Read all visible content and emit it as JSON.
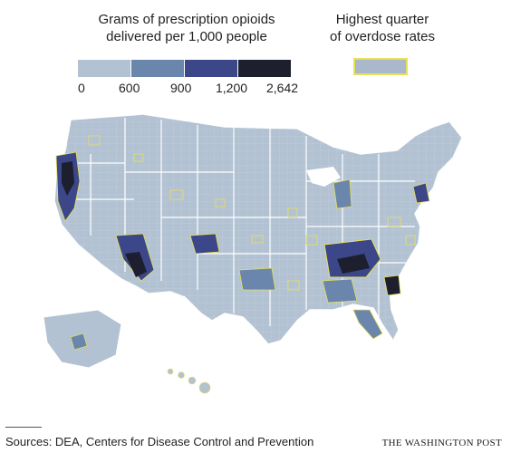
{
  "legend": {
    "title_line1": "Grams of prescription opioids",
    "title_line2": "delivered per 1,000 people",
    "bins": [
      {
        "color": "#b2c2d2"
      },
      {
        "color": "#6a86ad"
      },
      {
        "color": "#3b4789"
      },
      {
        "color": "#1d1f2e"
      }
    ],
    "ticks": [
      "0",
      "600",
      "900",
      "1,200",
      "2,642"
    ]
  },
  "overdose_legend": {
    "title_line1": "Highest quarter",
    "title_line2": "of overdose rates",
    "outline_color": "#e8e05a"
  },
  "source": "Sources: DEA, Centers for Disease Control and Prevention",
  "brand": "THE WASHINGTON POST"
}
